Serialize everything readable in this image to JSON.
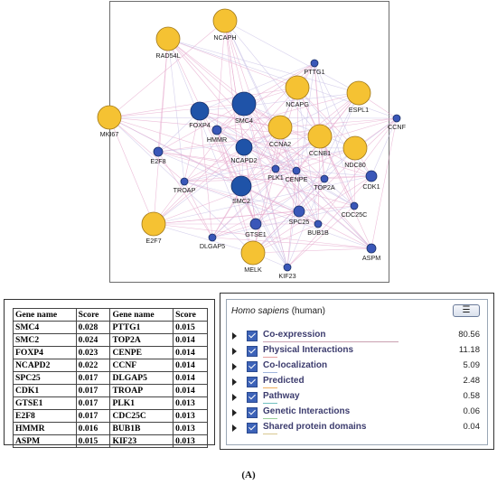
{
  "network": {
    "nodes": [
      {
        "id": "NCAPH",
        "label": "NCAPH",
        "group": "query"
      },
      {
        "id": "RAD54L",
        "label": "RAD54L",
        "group": "query"
      },
      {
        "id": "PTTG1",
        "label": "PTTG1",
        "group": "related"
      },
      {
        "id": "NCAPG",
        "label": "NCAPG",
        "group": "query"
      },
      {
        "id": "ESPL1",
        "label": "ESPL1",
        "group": "query"
      },
      {
        "id": "MKI67",
        "label": "MKI67",
        "group": "query"
      },
      {
        "id": "FOXP4",
        "label": "FOXP4",
        "group": "related"
      },
      {
        "id": "SMC4",
        "label": "SMC4",
        "group": "related"
      },
      {
        "id": "HMMR",
        "label": "HMMR",
        "group": "related"
      },
      {
        "id": "CCNA2",
        "label": "CCNA2",
        "group": "query"
      },
      {
        "id": "CCNB1",
        "label": "CCNB1",
        "group": "query"
      },
      {
        "id": "CCNF",
        "label": "CCNF",
        "group": "related"
      },
      {
        "id": "NCAPD2",
        "label": "NCAPD2",
        "group": "related"
      },
      {
        "id": "NDC80",
        "label": "NDC80",
        "group": "query"
      },
      {
        "id": "E2F8",
        "label": "E2F8",
        "group": "related"
      },
      {
        "id": "PLK1",
        "label": "PLK1",
        "group": "related"
      },
      {
        "id": "CENPE",
        "label": "CENPE",
        "group": "related"
      },
      {
        "id": "CDK1",
        "label": "CDK1",
        "group": "related"
      },
      {
        "id": "TOP2A",
        "label": "TOP2A",
        "group": "related"
      },
      {
        "id": "TROAP",
        "label": "TROAP",
        "group": "related"
      },
      {
        "id": "SMC2",
        "label": "SMC2",
        "group": "related"
      },
      {
        "id": "SPC25",
        "label": "SPC25",
        "group": "related"
      },
      {
        "id": "CDC25C",
        "label": "CDC25C",
        "group": "related"
      },
      {
        "id": "E2F7",
        "label": "E2F7",
        "group": "query"
      },
      {
        "id": "GTSE1",
        "label": "GTSE1",
        "group": "related"
      },
      {
        "id": "BUB1B",
        "label": "BUB1B",
        "group": "related"
      },
      {
        "id": "DLGAP5",
        "label": "DLGAP5",
        "group": "related"
      },
      {
        "id": "MELK",
        "label": "MELK",
        "group": "query"
      },
      {
        "id": "KIF23",
        "label": "KIF23",
        "group": "related"
      },
      {
        "id": "ASPM",
        "label": "ASPM",
        "group": "related"
      }
    ],
    "colors": {
      "query": "#f5c233",
      "related_dark": "#1f53a8",
      "related": "#3a57b8",
      "edge_pink": "#e6a8cc",
      "edge_lav": "#c8c0e6"
    }
  },
  "table": {
    "headers": [
      "Gene name",
      "Score",
      "Gene name",
      "Score"
    ],
    "rows": [
      [
        "SMC4",
        "0.028",
        "PTTG1",
        "0.015"
      ],
      [
        "SMC2",
        "0.024",
        "TOP2A",
        "0.014"
      ],
      [
        "FOXP4",
        "0.023",
        "CENPE",
        "0.014"
      ],
      [
        "NCAPD2",
        "0.022",
        "CCNF",
        "0.014"
      ],
      [
        "SPC25",
        "0.017",
        "DLGAP5",
        "0.014"
      ],
      [
        "CDK1",
        "0.017",
        "TROAP",
        "0.014"
      ],
      [
        "GTSE1",
        "0.017",
        "PLK1",
        "0.013"
      ],
      [
        "E2F8",
        "0.017",
        "CDC25C",
        "0.013"
      ],
      [
        "HMMR",
        "0.016",
        "BUB1B",
        "0.013"
      ],
      [
        "ASPM",
        "0.015",
        "KIF23",
        "0.013"
      ]
    ]
  },
  "legend": {
    "species_name": "Homo sapiens",
    "species_suffix": " (human)",
    "menu_icon": "menu-icon",
    "items": [
      {
        "label": "Co-expression",
        "value": "80.56",
        "color": "#c98ab8"
      },
      {
        "label": "Physical Interactions",
        "value": "11.18",
        "color": "#e6a0a0"
      },
      {
        "label": "Co-localization",
        "value": "5.09",
        "color": "#9fb5dd"
      },
      {
        "label": "Predicted",
        "value": "2.48",
        "color": "#f0b060"
      },
      {
        "label": "Pathway",
        "value": "0.58",
        "color": "#6fc0c0"
      },
      {
        "label": "Genetic Interactions",
        "value": "0.06",
        "color": "#9ad09a"
      },
      {
        "label": "Shared protein domains",
        "value": "0.04",
        "color": "#d8c890"
      }
    ]
  },
  "caption": "(A)"
}
